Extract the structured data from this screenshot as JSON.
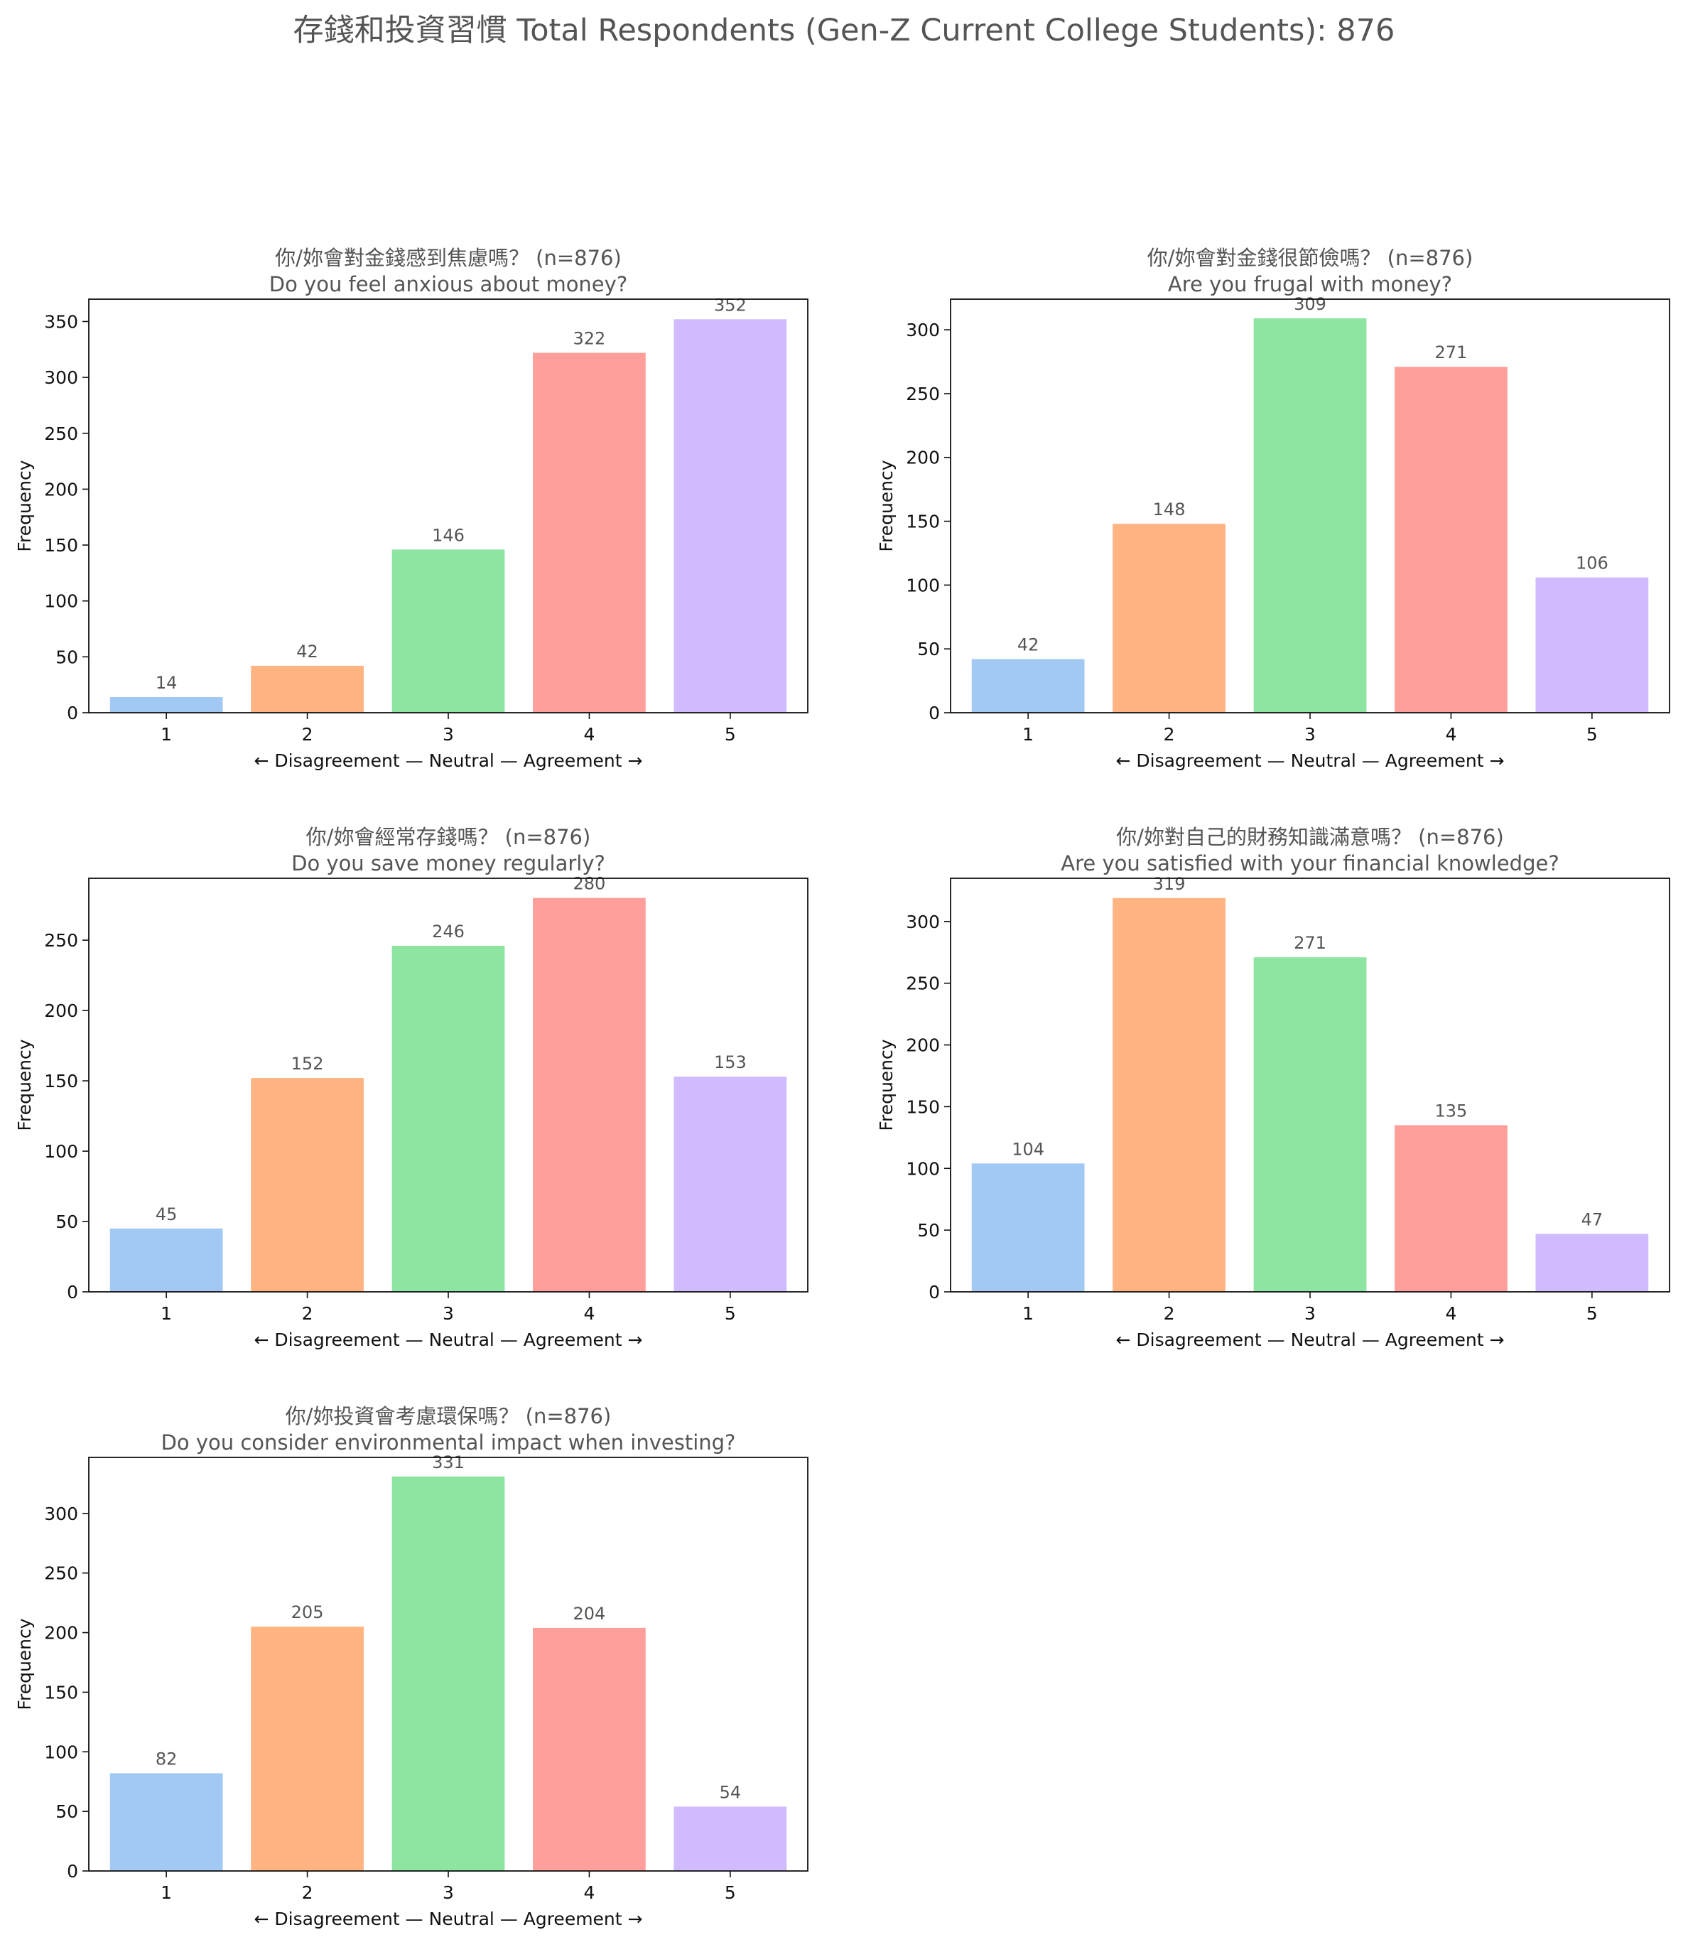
{
  "title": "存錢和投資習慣  Total Respondents (Gen-Z Current College Students): 876",
  "colors": [
    "#a1c9f4",
    "#ffb482",
    "#8de5a1",
    "#ff9f9b",
    "#d0bbff"
  ],
  "chart_data": [
    {
      "type": "bar",
      "title": "你/妳會對金錢感到焦慮嗎？ (n=876)",
      "subtitle": "Do you feel anxious about money?",
      "categories": [
        "1",
        "2",
        "3",
        "4",
        "5"
      ],
      "values": [
        14,
        42,
        146,
        322,
        352
      ],
      "value_labels": [
        "14",
        "42",
        "146",
        "322",
        "352"
      ],
      "xlabel": "← Disagreement — Neutral — Agreement →",
      "ylabel": "Frequency",
      "ylim": [
        0,
        370
      ],
      "yticks": [
        0,
        50,
        100,
        150,
        200,
        250,
        300,
        350
      ],
      "ytick_labels": [
        "0",
        "50",
        "100",
        "150",
        "200",
        "250",
        "300",
        "350"
      ],
      "grid": false
    },
    {
      "type": "bar",
      "title": "你/妳會對金錢很節儉嗎？ (n=876)",
      "subtitle": "Are you frugal with money?",
      "categories": [
        "1",
        "2",
        "3",
        "4",
        "5"
      ],
      "values": [
        42,
        148,
        309,
        271,
        106
      ],
      "value_labels": [
        "42",
        "148",
        "309",
        "271",
        "106"
      ],
      "xlabel": "← Disagreement — Neutral — Agreement →",
      "ylabel": "Frequency",
      "ylim": [
        0,
        324
      ],
      "yticks": [
        0,
        50,
        100,
        150,
        200,
        250,
        300
      ],
      "ytick_labels": [
        "0",
        "50",
        "100",
        "150",
        "200",
        "250",
        "300"
      ],
      "grid": false
    },
    {
      "type": "bar",
      "title": "你/妳會經常存錢嗎？ (n=876)",
      "subtitle": "Do you save money regularly?",
      "categories": [
        "1",
        "2",
        "3",
        "4",
        "5"
      ],
      "values": [
        45,
        152,
        246,
        280,
        153
      ],
      "value_labels": [
        "45",
        "152",
        "246",
        "280",
        "153"
      ],
      "xlabel": "← Disagreement — Neutral — Agreement →",
      "ylabel": "Frequency",
      "ylim": [
        0,
        294
      ],
      "yticks": [
        0,
        50,
        100,
        150,
        200,
        250
      ],
      "ytick_labels": [
        "0",
        "50",
        "100",
        "150",
        "200",
        "250"
      ],
      "grid": false
    },
    {
      "type": "bar",
      "title": "你/妳對自己的財務知識滿意嗎？ (n=876)",
      "subtitle": "Are you satisfied with your financial knowledge?",
      "categories": [
        "1",
        "2",
        "3",
        "4",
        "5"
      ],
      "values": [
        104,
        319,
        271,
        135,
        47
      ],
      "value_labels": [
        "104",
        "319",
        "271",
        "135",
        "47"
      ],
      "xlabel": "← Disagreement — Neutral — Agreement →",
      "ylabel": "Frequency",
      "ylim": [
        0,
        335
      ],
      "yticks": [
        0,
        50,
        100,
        150,
        200,
        250,
        300
      ],
      "ytick_labels": [
        "0",
        "50",
        "100",
        "150",
        "200",
        "250",
        "300"
      ],
      "grid": false
    },
    {
      "type": "bar",
      "title": "你/妳投資會考慮環保嗎？ (n=876)",
      "subtitle": "Do you consider environmental impact when investing?",
      "categories": [
        "1",
        "2",
        "3",
        "4",
        "5"
      ],
      "values": [
        82,
        205,
        331,
        204,
        54
      ],
      "value_labels": [
        "82",
        "205",
        "331",
        "204",
        "54"
      ],
      "xlabel": "← Disagreement — Neutral — Agreement →",
      "ylabel": "Frequency",
      "ylim": [
        0,
        347
      ],
      "yticks": [
        0,
        50,
        100,
        150,
        200,
        250,
        300
      ],
      "ytick_labels": [
        "0",
        "50",
        "100",
        "150",
        "200",
        "250",
        "300"
      ],
      "grid": false
    }
  ]
}
